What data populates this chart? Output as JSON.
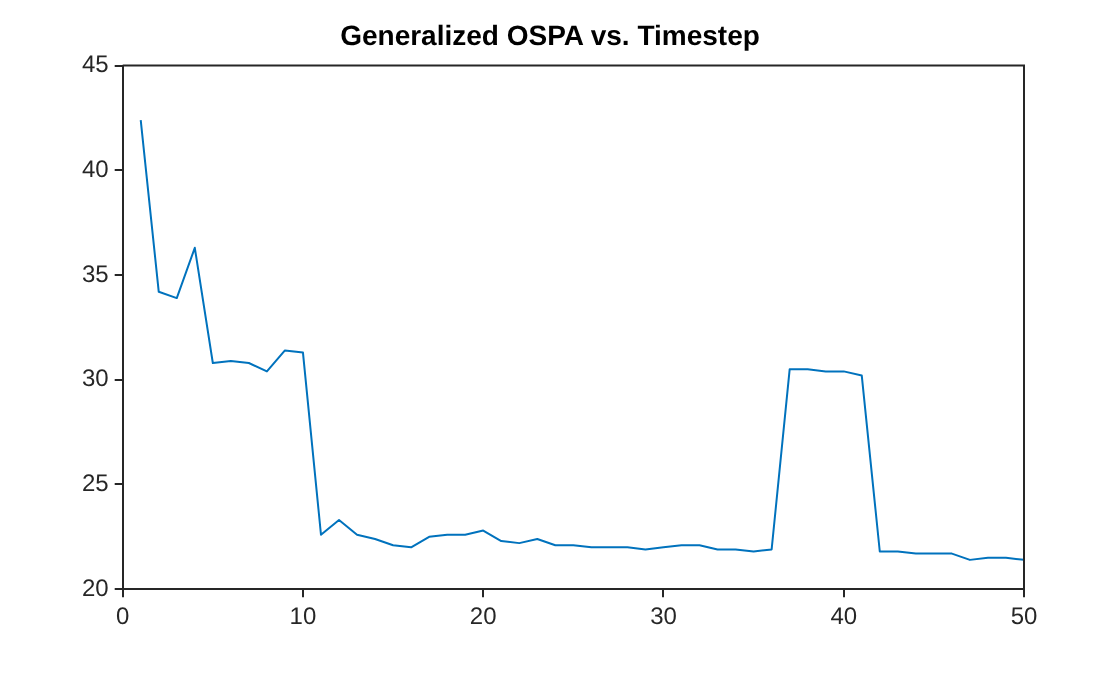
{
  "chart_data": {
    "type": "line",
    "title": "Generalized OSPA vs. Timestep",
    "x": [
      1,
      2,
      3,
      4,
      5,
      6,
      7,
      8,
      9,
      10,
      11,
      12,
      13,
      14,
      15,
      16,
      17,
      18,
      19,
      20,
      21,
      22,
      23,
      24,
      25,
      26,
      27,
      28,
      29,
      30,
      31,
      32,
      33,
      34,
      35,
      36,
      37,
      38,
      39,
      40,
      41,
      42,
      43,
      44,
      45,
      46,
      47,
      48,
      49,
      50
    ],
    "series": [
      {
        "color": "#0072bd",
        "values": [
          42.4,
          34.2,
          33.9,
          36.3,
          30.8,
          30.9,
          30.8,
          30.4,
          31.4,
          31.3,
          22.6,
          23.3,
          22.6,
          22.4,
          22.1,
          22.0,
          22.5,
          22.6,
          22.6,
          22.8,
          22.3,
          22.2,
          22.4,
          22.1,
          22.1,
          22.0,
          22.0,
          22.0,
          21.9,
          22.0,
          22.1,
          22.1,
          21.9,
          21.9,
          21.8,
          21.9,
          30.5,
          30.5,
          30.4,
          30.4,
          30.2,
          21.8,
          21.8,
          21.7,
          21.7,
          21.7,
          21.4,
          21.5,
          21.5,
          21.4
        ]
      }
    ],
    "xlim": [
      0,
      50
    ],
    "xticks": [
      0,
      10,
      20,
      30,
      40,
      50
    ],
    "ylim": [
      20,
      45
    ],
    "yticks": [
      20,
      25,
      30,
      35,
      40,
      45
    ],
    "grid": false,
    "legend": false,
    "marker": "none",
    "line_style": "solid"
  }
}
